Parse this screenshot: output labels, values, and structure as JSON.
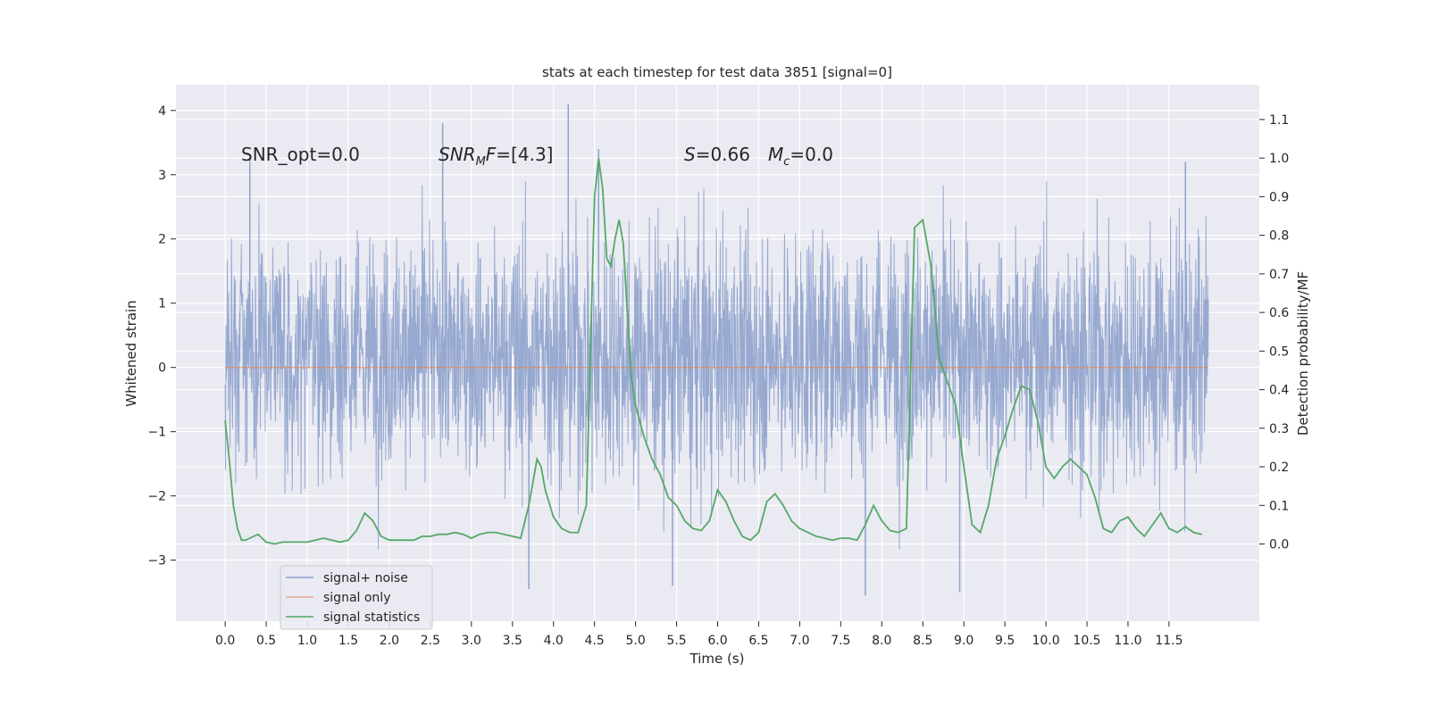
{
  "chart_data": {
    "type": "line",
    "title": "stats at each timestep for test data 3851 [signal=0]",
    "xlabel": "Time (s)",
    "ylabel_left": "Whitened strain",
    "ylabel_right": "Detection probability/MF",
    "xlim": [
      -0.6,
      12.6
    ],
    "ylim_left": [
      -3.95,
      4.4
    ],
    "ylim_right": [
      -0.2,
      1.19
    ],
    "x_ticks": [
      0.0,
      0.5,
      1.0,
      1.5,
      2.0,
      2.5,
      3.0,
      3.5,
      4.0,
      4.5,
      5.0,
      5.5,
      6.0,
      6.5,
      7.0,
      7.5,
      8.0,
      8.5,
      9.0,
      9.5,
      10.0,
      10.5,
      11.0,
      11.5
    ],
    "x_tick_labels": [
      "0.0",
      "0.5",
      "1.0",
      "1.5",
      "2.0",
      "2.5",
      "3.0",
      "3.5",
      "4.0",
      "4.5",
      "5.0",
      "5.5",
      "6.0",
      "6.5",
      "7.0",
      "7.5",
      "8.0",
      "8.5",
      "9.0",
      "9.5",
      "10.0",
      "10.5",
      "11.0",
      "11.5"
    ],
    "y_left_ticks": [
      -3,
      -2,
      -1,
      0,
      1,
      2,
      3,
      4
    ],
    "y_left_tick_labels": [
      "−3",
      "−2",
      "−1",
      "0",
      "1",
      "2",
      "3",
      "4"
    ],
    "y_right_ticks": [
      0.0,
      0.1,
      0.2,
      0.3,
      0.4,
      0.5,
      0.6,
      0.7,
      0.8,
      0.9,
      1.0,
      1.1
    ],
    "y_right_tick_labels": [
      "0.0",
      "0.1",
      "0.2",
      "0.3",
      "0.4",
      "0.5",
      "0.6",
      "0.7",
      "0.8",
      "0.9",
      "1.0",
      "1.1"
    ],
    "grid": true,
    "legend_placement": "lower-left",
    "annotations": [
      {
        "id": "snr-opt",
        "text": "SNR_opt=0.0"
      },
      {
        "id": "snr-mf",
        "text": "SNR_MF=[4.3]"
      },
      {
        "id": "s-mc",
        "text": "S=0.66   M_c=0.0"
      }
    ],
    "series": [
      {
        "name": "signal+ noise",
        "axis": "left",
        "color": "#8ea2cc",
        "t_range": [
          0.0,
          11.98
        ],
        "sample_rate_hz": 2048,
        "value_range": [
          -3.45,
          4.1
        ],
        "notable_peaks": [
          [
            0.3,
            3.25
          ],
          [
            2.65,
            3.8
          ],
          [
            4.18,
            4.1
          ],
          [
            4.55,
            3.4
          ],
          [
            11.7,
            3.2
          ]
        ],
        "notable_troughs": [
          [
            3.7,
            -3.45
          ],
          [
            5.45,
            -3.4
          ],
          [
            7.8,
            -3.55
          ],
          [
            8.95,
            -3.5
          ]
        ]
      },
      {
        "name": "signal only",
        "axis": "left",
        "color": "#dd8452",
        "x": [
          0.0,
          11.98
        ],
        "values": [
          0.0,
          0.0
        ]
      },
      {
        "name": "signal statistics",
        "axis": "right",
        "color": "#55a868",
        "x": [
          0.0,
          0.05,
          0.1,
          0.15,
          0.2,
          0.25,
          0.3,
          0.4,
          0.5,
          0.6,
          0.7,
          0.8,
          0.9,
          1.0,
          1.1,
          1.2,
          1.3,
          1.4,
          1.5,
          1.6,
          1.7,
          1.8,
          1.9,
          2.0,
          2.1,
          2.2,
          2.3,
          2.4,
          2.5,
          2.6,
          2.7,
          2.8,
          2.9,
          3.0,
          3.1,
          3.2,
          3.3,
          3.4,
          3.5,
          3.6,
          3.7,
          3.8,
          3.85,
          3.9,
          4.0,
          4.1,
          4.2,
          4.3,
          4.4,
          4.45,
          4.5,
          4.55,
          4.6,
          4.65,
          4.7,
          4.75,
          4.8,
          4.85,
          4.9,
          4.95,
          5.0,
          5.1,
          5.2,
          5.3,
          5.4,
          5.5,
          5.6,
          5.7,
          5.8,
          5.9,
          6.0,
          6.1,
          6.2,
          6.3,
          6.4,
          6.5,
          6.6,
          6.7,
          6.8,
          6.9,
          7.0,
          7.1,
          7.2,
          7.3,
          7.4,
          7.5,
          7.6,
          7.7,
          7.8,
          7.9,
          8.0,
          8.1,
          8.2,
          8.3,
          8.4,
          8.5,
          8.6,
          8.7,
          8.8,
          8.9,
          9.0,
          9.1,
          9.2,
          9.3,
          9.4,
          9.5,
          9.6,
          9.7,
          9.8,
          9.9,
          10.0,
          10.1,
          10.2,
          10.3,
          10.4,
          10.5,
          10.6,
          10.7,
          10.8,
          10.9,
          11.0,
          11.1,
          11.2,
          11.3,
          11.4,
          11.5,
          11.6,
          11.7,
          11.8,
          11.9
        ],
        "values": [
          0.32,
          0.22,
          0.1,
          0.04,
          0.01,
          0.01,
          0.015,
          0.025,
          0.005,
          0.0,
          0.005,
          0.005,
          0.005,
          0.005,
          0.01,
          0.015,
          0.01,
          0.005,
          0.01,
          0.035,
          0.08,
          0.06,
          0.02,
          0.01,
          0.01,
          0.01,
          0.01,
          0.02,
          0.02,
          0.025,
          0.025,
          0.03,
          0.025,
          0.015,
          0.025,
          0.03,
          0.03,
          0.025,
          0.02,
          0.015,
          0.1,
          0.22,
          0.2,
          0.14,
          0.07,
          0.04,
          0.03,
          0.03,
          0.1,
          0.5,
          0.9,
          1.0,
          0.92,
          0.74,
          0.72,
          0.79,
          0.84,
          0.78,
          0.6,
          0.43,
          0.36,
          0.28,
          0.22,
          0.18,
          0.12,
          0.1,
          0.06,
          0.04,
          0.035,
          0.06,
          0.14,
          0.11,
          0.06,
          0.02,
          0.01,
          0.03,
          0.11,
          0.13,
          0.1,
          0.06,
          0.04,
          0.03,
          0.02,
          0.015,
          0.01,
          0.015,
          0.015,
          0.01,
          0.05,
          0.1,
          0.06,
          0.035,
          0.03,
          0.04,
          0.82,
          0.84,
          0.72,
          0.48,
          0.42,
          0.36,
          0.2,
          0.05,
          0.03,
          0.1,
          0.22,
          0.28,
          0.35,
          0.41,
          0.4,
          0.32,
          0.2,
          0.17,
          0.2,
          0.22,
          0.2,
          0.18,
          0.12,
          0.04,
          0.03,
          0.06,
          0.07,
          0.04,
          0.02,
          0.05,
          0.08,
          0.04,
          0.03,
          0.045,
          0.03,
          0.025
        ]
      }
    ]
  }
}
